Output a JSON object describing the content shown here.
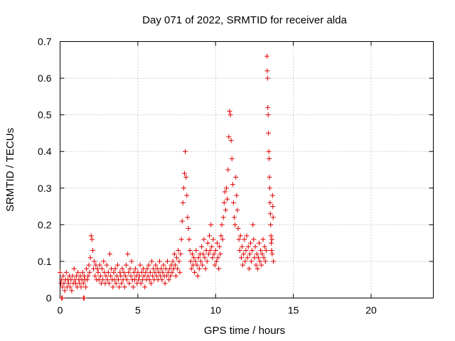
{
  "chart_data": {
    "type": "scatter",
    "title": "Day 071 of 2022, SRMTID for receiver alda",
    "xlabel": "GPS time / hours",
    "ylabel": "SRMTID / TECUs",
    "xlim": [
      0,
      24
    ],
    "ylim": [
      0,
      0.7
    ],
    "xticks": [
      0,
      5,
      10,
      15,
      20
    ],
    "yticks": [
      0,
      0.1,
      0.2,
      0.3,
      0.4,
      0.5,
      0.6,
      0.7
    ],
    "grid": true,
    "marker": "+",
    "series": [
      {
        "name": "SRMTID",
        "color": "#e00000",
        "points": [
          [
            0.0,
            0.07
          ],
          [
            0.05,
            0.04
          ],
          [
            0.1,
            0.05
          ],
          [
            0.15,
            0.03
          ],
          [
            0.2,
            0.06
          ],
          [
            0.25,
            0.04
          ],
          [
            0.3,
            0.02
          ],
          [
            0.35,
            0.05
          ],
          [
            0.4,
            0.07
          ],
          [
            0.45,
            0.03
          ],
          [
            0.5,
            0.05
          ],
          [
            0.55,
            0.04
          ],
          [
            0.6,
            0.06
          ],
          [
            0.65,
            0.03
          ],
          [
            0.7,
            0.05
          ],
          [
            0.75,
            0.02
          ],
          [
            0.8,
            0.06
          ],
          [
            0.85,
            0.04
          ],
          [
            0.9,
            0.08
          ],
          [
            0.95,
            0.05
          ],
          [
            1.0,
            0.04
          ],
          [
            1.05,
            0.06
          ],
          [
            1.1,
            0.03
          ],
          [
            1.15,
            0.07
          ],
          [
            1.2,
            0.05
          ],
          [
            1.25,
            0.04
          ],
          [
            1.3,
            0.06
          ],
          [
            1.35,
            0.03
          ],
          [
            1.4,
            0.05
          ],
          [
            1.45,
            0.07
          ],
          [
            1.5,
            0.04
          ],
          [
            1.55,
            0.06
          ],
          [
            1.6,
            0.05
          ],
          [
            1.65,
            0.03
          ],
          [
            1.7,
            0.08
          ],
          [
            1.75,
            0.05
          ],
          [
            1.8,
            0.06
          ],
          [
            1.85,
            0.09
          ],
          [
            1.9,
            0.07
          ],
          [
            1.95,
            0.11
          ],
          [
            2.0,
            0.17
          ],
          [
            2.05,
            0.16
          ],
          [
            2.1,
            0.13
          ],
          [
            2.15,
            0.08
          ],
          [
            2.2,
            0.1
          ],
          [
            2.25,
            0.06
          ],
          [
            2.3,
            0.09
          ],
          [
            2.35,
            0.05
          ],
          [
            2.4,
            0.08
          ],
          [
            2.45,
            0.07
          ],
          [
            2.5,
            0.05
          ],
          [
            2.55,
            0.09
          ],
          [
            2.6,
            0.06
          ],
          [
            2.65,
            0.04
          ],
          [
            2.7,
            0.08
          ],
          [
            2.75,
            0.05
          ],
          [
            2.8,
            0.1
          ],
          [
            2.85,
            0.07
          ],
          [
            2.9,
            0.04
          ],
          [
            2.95,
            0.06
          ],
          [
            3.0,
            0.09
          ],
          [
            3.05,
            0.05
          ],
          [
            3.1,
            0.07
          ],
          [
            3.15,
            0.04
          ],
          [
            3.2,
            0.12
          ],
          [
            3.25,
            0.06
          ],
          [
            3.3,
            0.08
          ],
          [
            3.35,
            0.05
          ],
          [
            3.4,
            0.03
          ],
          [
            3.45,
            0.07
          ],
          [
            3.5,
            0.05
          ],
          [
            3.55,
            0.08
          ],
          [
            3.6,
            0.04
          ],
          [
            3.65,
            0.06
          ],
          [
            3.7,
            0.09
          ],
          [
            3.75,
            0.05
          ],
          [
            3.8,
            0.03
          ],
          [
            3.85,
            0.07
          ],
          [
            3.9,
            0.06
          ],
          [
            3.95,
            0.04
          ],
          [
            4.0,
            0.08
          ],
          [
            4.05,
            0.05
          ],
          [
            4.1,
            0.07
          ],
          [
            4.15,
            0.03
          ],
          [
            4.2,
            0.06
          ],
          [
            4.25,
            0.09
          ],
          [
            4.3,
            0.05
          ],
          [
            4.35,
            0.12
          ],
          [
            4.4,
            0.07
          ],
          [
            4.45,
            0.04
          ],
          [
            4.5,
            0.08
          ],
          [
            4.55,
            0.06
          ],
          [
            4.6,
            0.1
          ],
          [
            4.65,
            0.05
          ],
          [
            4.7,
            0.03
          ],
          [
            4.75,
            0.07
          ],
          [
            4.8,
            0.05
          ],
          [
            4.85,
            0.08
          ],
          [
            4.9,
            0.06
          ],
          [
            4.95,
            0.04
          ],
          [
            5.0,
            0.07
          ],
          [
            5.05,
            0.05
          ],
          [
            5.1,
            0.06
          ],
          [
            5.15,
            0.09
          ],
          [
            5.2,
            0.04
          ],
          [
            5.25,
            0.07
          ],
          [
            5.3,
            0.05
          ],
          [
            5.35,
            0.08
          ],
          [
            5.4,
            0.06
          ],
          [
            5.45,
            0.03
          ],
          [
            5.5,
            0.07
          ],
          [
            5.55,
            0.05
          ],
          [
            5.6,
            0.08
          ],
          [
            5.65,
            0.06
          ],
          [
            5.7,
            0.09
          ],
          [
            5.75,
            0.05
          ],
          [
            5.8,
            0.07
          ],
          [
            5.85,
            0.04
          ],
          [
            5.9,
            0.1
          ],
          [
            5.95,
            0.06
          ],
          [
            6.0,
            0.08
          ],
          [
            6.05,
            0.05
          ],
          [
            6.1,
            0.07
          ],
          [
            6.15,
            0.09
          ],
          [
            6.2,
            0.06
          ],
          [
            6.25,
            0.08
          ],
          [
            6.3,
            0.05
          ],
          [
            6.35,
            0.07
          ],
          [
            6.4,
            0.1
          ],
          [
            6.45,
            0.06
          ],
          [
            6.5,
            0.08
          ],
          [
            6.55,
            0.05
          ],
          [
            6.6,
            0.07
          ],
          [
            6.65,
            0.09
          ],
          [
            6.7,
            0.06
          ],
          [
            6.75,
            0.04
          ],
          [
            6.8,
            0.08
          ],
          [
            6.85,
            0.06
          ],
          [
            6.9,
            0.1
          ],
          [
            6.95,
            0.07
          ],
          [
            7.0,
            0.05
          ],
          [
            7.05,
            0.08
          ],
          [
            7.1,
            0.06
          ],
          [
            7.15,
            0.09
          ],
          [
            7.2,
            0.07
          ],
          [
            7.25,
            0.1
          ],
          [
            7.3,
            0.08
          ],
          [
            7.35,
            0.12
          ],
          [
            7.4,
            0.09
          ],
          [
            7.45,
            0.06
          ],
          [
            7.5,
            0.11
          ],
          [
            7.55,
            0.08
          ],
          [
            7.6,
            0.13
          ],
          [
            7.65,
            0.1
          ],
          [
            7.7,
            0.07
          ],
          [
            7.75,
            0.12
          ],
          [
            7.8,
            0.16
          ],
          [
            7.85,
            0.21
          ],
          [
            7.9,
            0.26
          ],
          [
            7.95,
            0.3
          ],
          [
            8.0,
            0.34
          ],
          [
            8.05,
            0.4
          ],
          [
            8.1,
            0.33
          ],
          [
            8.15,
            0.28
          ],
          [
            8.2,
            0.22
          ],
          [
            8.25,
            0.19
          ],
          [
            8.3,
            0.16
          ],
          [
            8.35,
            0.13
          ],
          [
            8.4,
            0.1
          ],
          [
            8.45,
            0.08
          ],
          [
            8.5,
            0.12
          ],
          [
            8.55,
            0.09
          ],
          [
            8.6,
            0.11
          ],
          [
            8.65,
            0.07
          ],
          [
            8.7,
            0.1
          ],
          [
            8.75,
            0.13
          ],
          [
            8.8,
            0.09
          ],
          [
            8.85,
            0.06
          ],
          [
            8.9,
            0.11
          ],
          [
            8.95,
            0.08
          ],
          [
            9.0,
            0.12
          ],
          [
            9.05,
            0.1
          ],
          [
            9.1,
            0.14
          ],
          [
            9.15,
            0.09
          ],
          [
            9.2,
            0.12
          ],
          [
            9.25,
            0.16
          ],
          [
            9.3,
            0.11
          ],
          [
            9.35,
            0.08
          ],
          [
            9.4,
            0.13
          ],
          [
            9.45,
            0.1
          ],
          [
            9.5,
            0.15
          ],
          [
            9.55,
            0.12
          ],
          [
            9.6,
            0.17
          ],
          [
            9.65,
            0.13
          ],
          [
            9.7,
            0.2
          ],
          [
            9.75,
            0.14
          ],
          [
            9.8,
            0.11
          ],
          [
            9.85,
            0.16
          ],
          [
            9.9,
            0.12
          ],
          [
            9.95,
            0.09
          ],
          [
            10.0,
            0.13
          ],
          [
            10.05,
            0.1
          ],
          [
            10.1,
            0.15
          ],
          [
            10.15,
            0.11
          ],
          [
            10.2,
            0.08
          ],
          [
            10.25,
            0.14
          ],
          [
            10.3,
            0.12
          ],
          [
            10.35,
            0.17
          ],
          [
            10.4,
            0.2
          ],
          [
            10.45,
            0.16
          ],
          [
            10.5,
            0.22
          ],
          [
            10.55,
            0.26
          ],
          [
            10.6,
            0.29
          ],
          [
            10.65,
            0.24
          ],
          [
            10.7,
            0.3
          ],
          [
            10.75,
            0.27
          ],
          [
            10.8,
            0.35
          ],
          [
            10.85,
            0.44
          ],
          [
            10.9,
            0.51
          ],
          [
            10.95,
            0.5
          ],
          [
            11.0,
            0.43
          ],
          [
            11.05,
            0.38
          ],
          [
            11.1,
            0.31
          ],
          [
            11.15,
            0.26
          ],
          [
            11.2,
            0.22
          ],
          [
            11.25,
            0.2
          ],
          [
            11.3,
            0.33
          ],
          [
            11.35,
            0.28
          ],
          [
            11.4,
            0.24
          ],
          [
            11.45,
            0.19
          ],
          [
            11.5,
            0.16
          ],
          [
            11.55,
            0.13
          ],
          [
            11.6,
            0.17
          ],
          [
            11.65,
            0.11
          ],
          [
            11.7,
            0.14
          ],
          [
            11.75,
            0.09
          ],
          [
            11.8,
            0.12
          ],
          [
            11.85,
            0.16
          ],
          [
            11.9,
            0.1
          ],
          [
            11.95,
            0.13
          ],
          [
            12.0,
            0.17
          ],
          [
            12.05,
            0.11
          ],
          [
            12.1,
            0.14
          ],
          [
            12.15,
            0.08
          ],
          [
            12.2,
            0.12
          ],
          [
            12.25,
            0.15
          ],
          [
            12.3,
            0.1
          ],
          [
            12.35,
            0.13
          ],
          [
            12.4,
            0.2
          ],
          [
            12.45,
            0.16
          ],
          [
            12.5,
            0.11
          ],
          [
            12.55,
            0.14
          ],
          [
            12.6,
            0.09
          ],
          [
            12.65,
            0.12
          ],
          [
            12.7,
            0.08
          ],
          [
            12.75,
            0.11
          ],
          [
            12.8,
            0.15
          ],
          [
            12.85,
            0.1
          ],
          [
            12.9,
            0.13
          ],
          [
            12.95,
            0.09
          ],
          [
            13.0,
            0.12
          ],
          [
            13.05,
            0.16
          ],
          [
            13.1,
            0.11
          ],
          [
            13.15,
            0.14
          ],
          [
            13.2,
            0.1
          ],
          [
            13.25,
            0.13
          ],
          [
            13.3,
            0.66
          ],
          [
            13.32,
            0.62
          ],
          [
            13.34,
            0.6
          ],
          [
            13.36,
            0.52
          ],
          [
            13.38,
            0.5
          ],
          [
            13.4,
            0.45
          ],
          [
            13.42,
            0.4
          ],
          [
            13.44,
            0.38
          ],
          [
            13.46,
            0.33
          ],
          [
            13.48,
            0.3
          ],
          [
            13.5,
            0.26
          ],
          [
            13.52,
            0.23
          ],
          [
            13.54,
            0.2
          ],
          [
            13.56,
            0.17
          ],
          [
            13.58,
            0.15
          ],
          [
            13.6,
            0.13
          ],
          [
            13.62,
            0.16
          ],
          [
            13.64,
            0.12
          ],
          [
            13.66,
            0.28
          ],
          [
            13.68,
            0.25
          ],
          [
            13.7,
            0.22
          ],
          [
            13.72,
            0.1
          ],
          [
            0.1,
            0.0
          ],
          [
            0.15,
            0.0
          ],
          [
            1.5,
            0.0
          ],
          [
            1.55,
            0.0
          ]
        ]
      }
    ]
  }
}
